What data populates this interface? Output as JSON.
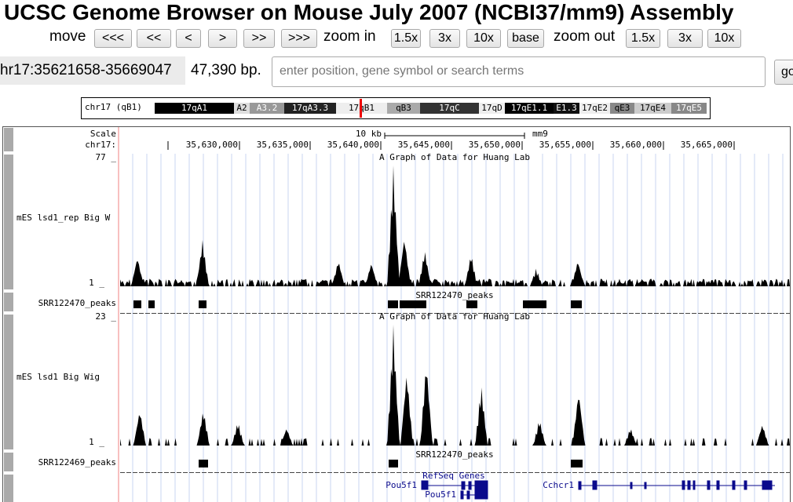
{
  "header": {
    "title": "UCSC Genome Browser on Mouse July 2007 (NCBI37/mm9) Assembly"
  },
  "nav": {
    "move_label": "move",
    "move_buttons": [
      "<<<",
      "<<",
      "<",
      ">",
      ">>",
      ">>>"
    ],
    "zoom_in_label": "zoom in",
    "zoom_in_buttons": [
      "1.5x",
      "3x",
      "10x"
    ],
    "base_button": "base",
    "zoom_out_label": "zoom out",
    "zoom_out_buttons": [
      "1.5x",
      "3x",
      "10x"
    ]
  },
  "position": {
    "range": "hr17:35621658-35669047",
    "size": "47,390 bp.",
    "search_placeholder": "enter position, gene symbol or search terms",
    "go": "go"
  },
  "ideogram": {
    "label": "chr17 (qB1)",
    "bands": [
      "17qA1",
      "A2",
      "A3.2",
      "17qA3.3",
      "17qB1",
      "qB3",
      "17qC",
      "17qD",
      "17qE1.1",
      "E1.3",
      "17qE2",
      "qE3",
      "17qE4",
      "17qE5"
    ]
  },
  "tracks": {
    "scale_label": "Scale",
    "scale_bar": "10 kb",
    "assembly": "mm9",
    "chrom_label": "chr17:",
    "positions": [
      "35,630,000",
      "35,635,000",
      "35,640,000",
      "35,645,000",
      "35,650,000",
      "35,655,000",
      "35,660,000",
      "35,665,000"
    ],
    "graph1": {
      "max": "77 _",
      "min": "1 _",
      "title": "A Graph of Data for Huang Lab",
      "label": "mES lsd1_rep Big W"
    },
    "peaks1": {
      "label": "SRR122470_peaks",
      "center": "SRR122470_peaks"
    },
    "graph2": {
      "max": "23 _",
      "min": "1 _",
      "title": "A Graph of Data for Huang Lab",
      "label": "mES lsd1 Big Wig"
    },
    "peaks2": {
      "label": "SRR122469_peaks",
      "center": "SRR122470_peaks"
    },
    "genes": {
      "title": "RefSeq Genes",
      "gene1": "Pou5f1",
      "gene2": "Pou5f1",
      "gene3": "Cchcr1"
    }
  }
}
